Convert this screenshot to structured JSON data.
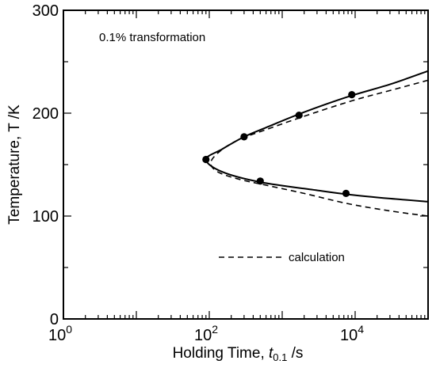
{
  "chart_data": {
    "type": "line",
    "annotation": "0.1% transformation",
    "xlabel": {
      "prefix": "Holding Time, ",
      "var": "t",
      "sub": "0.1",
      "suffix": " /s"
    },
    "ylabel": "Temperature, T /K",
    "xscale": "log",
    "xlim": [
      1,
      100000
    ],
    "ylim": [
      0,
      300
    ],
    "x_ticks": [
      {
        "value": 1,
        "base": "10",
        "exp": "0"
      },
      {
        "value": 100,
        "base": "10",
        "exp": "2"
      },
      {
        "value": 10000,
        "base": "10",
        "exp": "4"
      }
    ],
    "y_ticks": [
      {
        "value": 0,
        "label": "0"
      },
      {
        "value": 100,
        "label": "100"
      },
      {
        "value": 200,
        "label": "200"
      },
      {
        "value": 300,
        "label": "300"
      }
    ],
    "legend_label": "calculation",
    "legend_placement": "bottom-right",
    "grid": false,
    "series": [
      {
        "style": "solid",
        "points": [
          [
            100000,
            241
          ],
          [
            30000,
            228
          ],
          [
            8000,
            216
          ],
          [
            2000,
            201
          ],
          [
            600,
            186
          ],
          [
            300,
            177
          ],
          [
            150,
            165
          ],
          [
            90,
            155
          ],
          [
            150,
            143
          ],
          [
            500,
            133
          ],
          [
            3000,
            125
          ],
          [
            8000,
            121
          ],
          [
            30000,
            117
          ],
          [
            100000,
            114
          ]
        ]
      },
      {
        "style": "dashed",
        "points": [
          [
            100000,
            232
          ],
          [
            30000,
            222
          ],
          [
            9000,
            212
          ],
          [
            2000,
            197
          ],
          [
            600,
            184
          ],
          [
            250,
            174
          ],
          [
            140,
            163
          ],
          [
            105,
            152
          ],
          [
            130,
            143
          ],
          [
            250,
            136
          ],
          [
            600,
            130
          ],
          [
            2000,
            122
          ],
          [
            8000,
            112
          ],
          [
            30000,
            105
          ],
          [
            100000,
            100
          ]
        ]
      },
      {
        "style": "markers",
        "points": [
          [
            90,
            155
          ],
          [
            300,
            177
          ],
          [
            1700,
            198
          ],
          [
            9000,
            218
          ],
          [
            500,
            134
          ],
          [
            7500,
            122
          ]
        ]
      }
    ]
  }
}
